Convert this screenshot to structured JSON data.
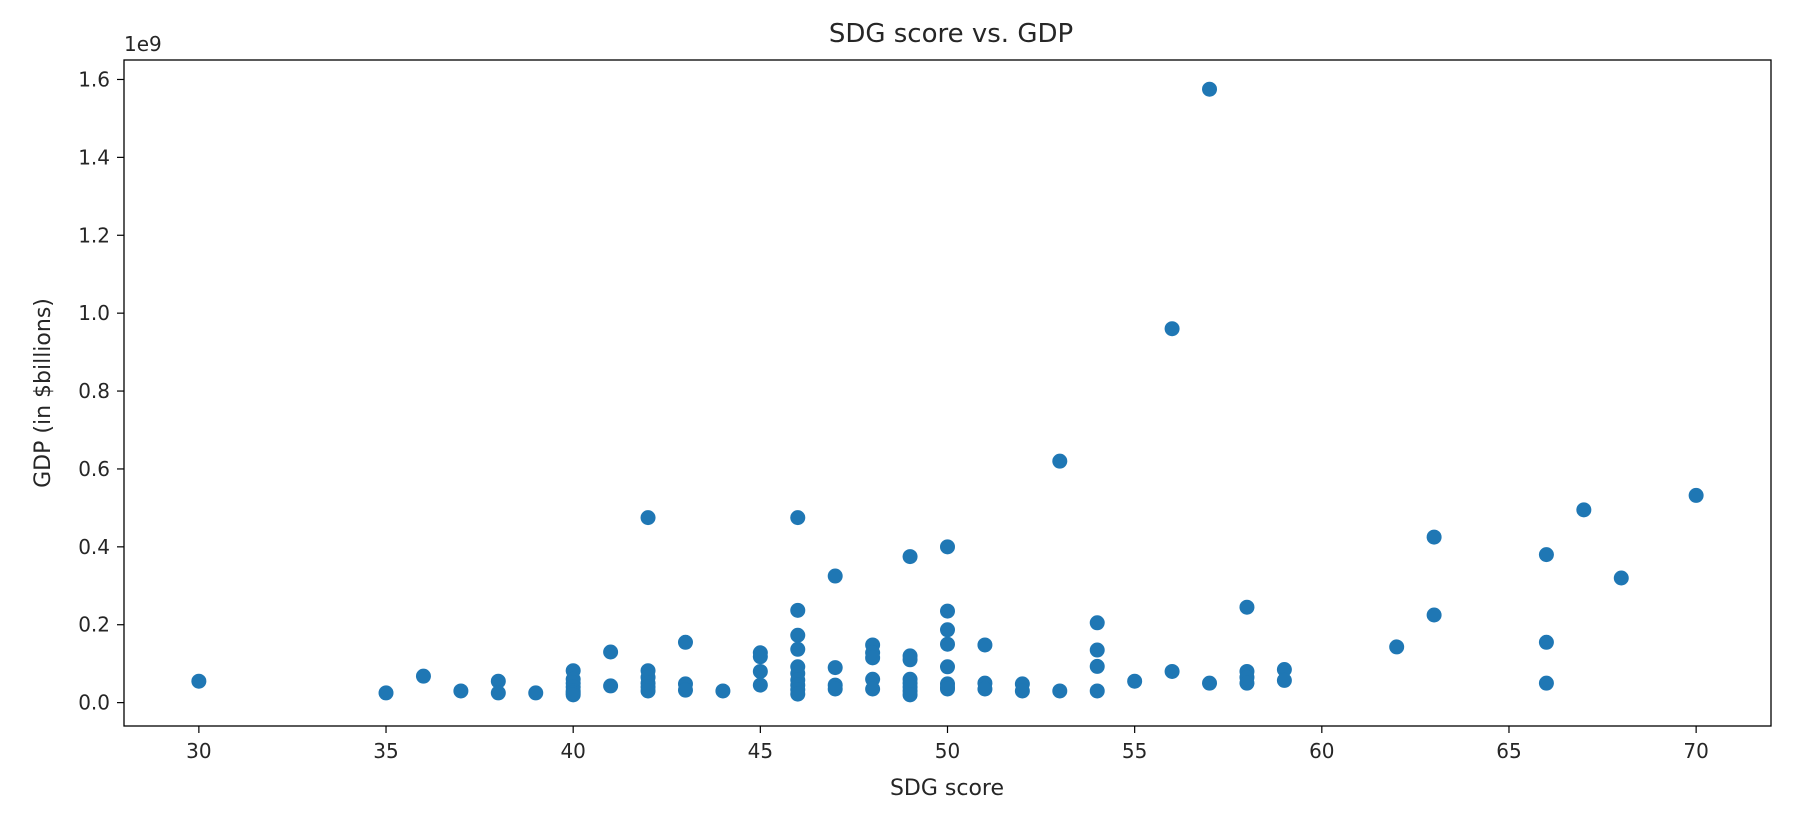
{
  "chart_data": {
    "type": "scatter",
    "title": "SDG score vs. GDP",
    "xlabel": "SDG score",
    "ylabel": "GDP (in $billions)",
    "y_offset_label": "1e9",
    "xlim": [
      28,
      72
    ],
    "ylim": [
      -0.06,
      1.65
    ],
    "xticks": [
      30,
      35,
      40,
      45,
      50,
      55,
      60,
      65,
      70
    ],
    "yticks": [
      0.0,
      0.2,
      0.4,
      0.6,
      0.8,
      1.0,
      1.2,
      1.4,
      1.6
    ],
    "ytick_labels": [
      "0.0",
      "0.2",
      "0.4",
      "0.6",
      "0.8",
      "1.0",
      "1.2",
      "1.4",
      "1.6"
    ],
    "grid": false,
    "color": "#1f77b4",
    "series": [
      {
        "x": [
          30,
          35,
          36,
          37,
          38,
          38,
          39,
          40,
          40,
          40,
          40,
          40,
          40,
          40,
          41,
          41,
          42,
          42,
          42,
          42,
          42,
          42,
          43,
          43,
          43,
          44,
          45,
          45,
          45,
          45,
          46,
          46,
          46,
          46,
          46,
          46,
          46,
          46,
          46,
          46,
          47,
          47,
          47,
          47,
          48,
          48,
          48,
          48,
          48,
          49,
          49,
          49,
          49,
          49,
          49,
          49,
          49,
          50,
          50,
          50,
          50,
          50,
          50,
          50,
          50,
          51,
          51,
          51,
          52,
          52,
          53,
          53,
          54,
          54,
          54,
          54,
          55,
          56,
          56,
          57,
          57,
          58,
          58,
          58,
          58,
          59,
          59,
          62,
          63,
          63,
          66,
          66,
          66,
          67,
          68,
          70
        ],
        "y": [
          0.055,
          0.025,
          0.068,
          0.03,
          0.055,
          0.025,
          0.025,
          0.082,
          0.06,
          0.05,
          0.04,
          0.03,
          0.025,
          0.02,
          0.13,
          0.043,
          0.475,
          0.082,
          0.065,
          0.05,
          0.04,
          0.03,
          0.155,
          0.048,
          0.032,
          0.03,
          0.128,
          0.118,
          0.08,
          0.045,
          0.475,
          0.237,
          0.173,
          0.137,
          0.092,
          0.075,
          0.058,
          0.045,
          0.033,
          0.022,
          0.325,
          0.09,
          0.045,
          0.035,
          0.148,
          0.128,
          0.115,
          0.06,
          0.035,
          0.375,
          0.12,
          0.11,
          0.06,
          0.05,
          0.04,
          0.03,
          0.02,
          0.4,
          0.235,
          0.187,
          0.15,
          0.092,
          0.048,
          0.04,
          0.035,
          0.148,
          0.05,
          0.035,
          0.048,
          0.03,
          0.62,
          0.03,
          0.205,
          0.135,
          0.093,
          0.03,
          0.055,
          0.96,
          0.08,
          1.575,
          0.05,
          0.245,
          0.08,
          0.065,
          0.05,
          0.085,
          0.057,
          0.143,
          0.425,
          0.225,
          0.38,
          0.155,
          0.05,
          0.495,
          0.32,
          0.532
        ]
      }
    ]
  }
}
